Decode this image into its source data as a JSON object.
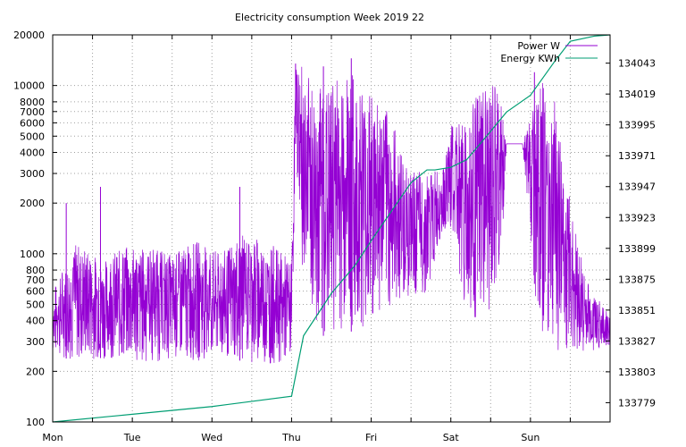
{
  "chart_data": {
    "type": "line",
    "title": "Electricity consumption Week 2019 22",
    "x_tick_labels": [
      "Mon",
      "Tue",
      "Wed",
      "Thu",
      "Fri",
      "Sat",
      "Sun"
    ],
    "xlim_days": [
      0,
      7
    ],
    "y_left": {
      "scale": "log",
      "range": [
        100,
        20000
      ],
      "tick_labels": [
        "100",
        "200",
        "300",
        "400",
        "500",
        "600",
        "700",
        "800",
        "1000",
        "2000",
        "3000",
        "4000",
        "5000",
        "6000",
        "7000",
        "8000",
        "10000",
        "20000"
      ],
      "tick_values": [
        100,
        200,
        300,
        400,
        500,
        600,
        700,
        800,
        1000,
        2000,
        3000,
        4000,
        5000,
        6000,
        7000,
        8000,
        10000,
        20000
      ]
    },
    "y_right": {
      "scale": "linear",
      "range": [
        133764,
        134065
      ],
      "tick_labels": [
        "133779",
        "133803",
        "133827",
        "133851",
        "133875",
        "133899",
        "133923",
        "133947",
        "133971",
        "133995",
        "134019",
        "134043"
      ],
      "tick_values": [
        133779,
        133803,
        133827,
        133851,
        133875,
        133899,
        133923,
        133947,
        133971,
        133995,
        134019,
        134043
      ]
    },
    "legend_position": "top-right",
    "grid": true,
    "series": [
      {
        "name": "Power W",
        "axis": "left",
        "color": "#9400d3",
        "envelope_days": [
          0,
          0.3,
          0.6,
          0.9,
          1.2,
          1.5,
          1.8,
          2.1,
          2.4,
          2.7,
          3.0,
          3.05,
          3.15,
          3.3,
          3.5,
          3.7,
          3.9,
          4.1,
          4.3,
          4.5,
          4.7,
          4.9,
          5.0,
          5.2,
          5.4,
          5.6,
          5.7,
          5.9,
          6.1,
          6.3,
          6.5,
          6.7,
          7.0
        ],
        "min_w": [
          250,
          230,
          240,
          230,
          220,
          240,
          230,
          240,
          230,
          220,
          230,
          4500,
          600,
          320,
          330,
          340,
          360,
          420,
          520,
          560,
          560,
          1400,
          1300,
          420,
          380,
          400,
          4500,
          4500,
          350,
          250,
          280,
          260,
          280
        ],
        "max_w": [
          600,
          1200,
          900,
          1100,
          1100,
          1000,
          1200,
          1000,
          1300,
          1200,
          900,
          13000,
          13000,
          10000,
          10500,
          13000,
          10000,
          9000,
          5500,
          3000,
          3200,
          3100,
          5700,
          7000,
          10000,
          10000,
          4500,
          4500,
          11000,
          9000,
          2000,
          700,
          420
        ],
        "peaks_days": [
          0.17,
          0.6,
          2.35,
          3.05,
          3.4,
          3.75,
          6.05
        ],
        "peaks_w": [
          2000,
          2500,
          2500,
          13500,
          13000,
          14500,
          12000
        ]
      },
      {
        "name": "Energy KWh",
        "axis": "right",
        "color": "#009e73",
        "x_days": [
          0,
          1,
          2,
          3,
          3.15,
          3.5,
          3.8,
          4.0,
          4.3,
          4.5,
          4.7,
          4.8,
          5.0,
          5.2,
          5.5,
          5.7,
          6.0,
          6.3,
          6.5,
          6.8,
          7.0
        ],
        "values": [
          133764,
          133770,
          133776,
          133784,
          133831,
          133864,
          133886,
          133905,
          133932,
          133950,
          133960,
          133960,
          133962,
          133968,
          133990,
          134005,
          134018,
          134044,
          134060,
          134064,
          134065
        ]
      }
    ]
  }
}
